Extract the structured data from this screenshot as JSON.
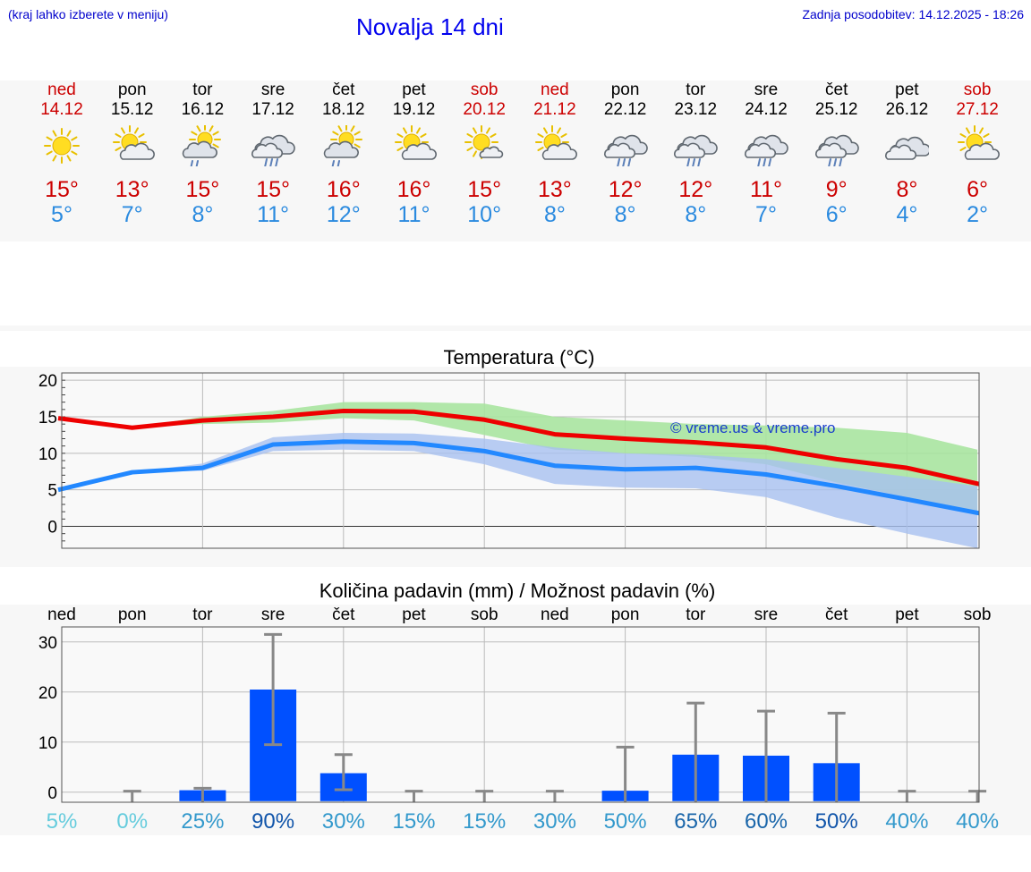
{
  "header": {
    "note": "(kraj lahko izberete v meniju)",
    "title": "Novalja 14 dni",
    "updated": "Zadnja posodobitev: 14.12.2025 - 18:26"
  },
  "colors": {
    "weekend": "#cc0000",
    "tmax": "#cc0000",
    "tmin": "#2a8adf",
    "max_line": "#ee0000",
    "min_line": "#2288ff",
    "max_band": "#a8e4a0",
    "min_band": "#a8c0f0",
    "bar": "#0050ff",
    "error_bar": "#888888"
  },
  "days": [
    {
      "name": "ned",
      "date": "14.12",
      "weekend": true,
      "icon": "sun-icon",
      "tmax": "15°",
      "tmin": "5°"
    },
    {
      "name": "pon",
      "date": "15.12",
      "weekend": false,
      "icon": "sun-cloud-icon",
      "tmax": "13°",
      "tmin": "7°"
    },
    {
      "name": "tor",
      "date": "16.12",
      "weekend": false,
      "icon": "sun-cloud-rain-icon",
      "tmax": "15°",
      "tmin": "8°"
    },
    {
      "name": "sre",
      "date": "17.12",
      "weekend": false,
      "icon": "cloud-rain-icon",
      "tmax": "15°",
      "tmin": "11°"
    },
    {
      "name": "čet",
      "date": "18.12",
      "weekend": false,
      "icon": "sun-cloud-rain-icon",
      "tmax": "16°",
      "tmin": "12°"
    },
    {
      "name": "pet",
      "date": "19.12",
      "weekend": false,
      "icon": "sun-cloud-icon",
      "tmax": "16°",
      "tmin": "11°"
    },
    {
      "name": "sob",
      "date": "20.12",
      "weekend": true,
      "icon": "sun-small-cloud-icon",
      "tmax": "15°",
      "tmin": "10°"
    },
    {
      "name": "ned",
      "date": "21.12",
      "weekend": true,
      "icon": "sun-cloud-icon",
      "tmax": "13°",
      "tmin": "8°"
    },
    {
      "name": "pon",
      "date": "22.12",
      "weekend": false,
      "icon": "cloud-rain-icon",
      "tmax": "12°",
      "tmin": "8°"
    },
    {
      "name": "tor",
      "date": "23.12",
      "weekend": false,
      "icon": "cloud-rain-icon",
      "tmax": "12°",
      "tmin": "8°"
    },
    {
      "name": "sre",
      "date": "24.12",
      "weekend": false,
      "icon": "cloud-rain-icon",
      "tmax": "11°",
      "tmin": "7°"
    },
    {
      "name": "čet",
      "date": "25.12",
      "weekend": false,
      "icon": "cloud-rain-icon",
      "tmax": "9°",
      "tmin": "6°"
    },
    {
      "name": "pet",
      "date": "26.12",
      "weekend": false,
      "icon": "cloud-icon",
      "tmax": "8°",
      "tmin": "4°"
    },
    {
      "name": "sob",
      "date": "27.12",
      "weekend": true,
      "icon": "sun-cloud-icon",
      "tmax": "6°",
      "tmin": "2°"
    }
  ],
  "chart_data": [
    {
      "type": "line",
      "title": "Temperatura (°C)",
      "watermark": "© vreme.us & vreme.pro",
      "x": [
        0,
        1,
        2,
        3,
        4,
        5,
        6,
        7,
        8,
        9,
        10,
        11,
        12,
        13
      ],
      "ylim": [
        -3,
        21
      ],
      "yticks": [
        0,
        5,
        10,
        15,
        20
      ],
      "grid": true,
      "series": [
        {
          "name": "max",
          "values": [
            14.8,
            13.5,
            14.5,
            15.0,
            15.8,
            15.7,
            14.6,
            12.6,
            12.0,
            11.5,
            10.8,
            9.2,
            8.0,
            5.8
          ]
        },
        {
          "name": "min",
          "values": [
            5.0,
            7.4,
            8.0,
            11.2,
            11.6,
            11.4,
            10.3,
            8.3,
            7.8,
            8.0,
            7.1,
            5.5,
            3.7,
            1.8
          ]
        }
      ],
      "bands": [
        {
          "name": "max-range",
          "low": [
            14.8,
            13.5,
            14.0,
            14.2,
            14.8,
            14.5,
            12.5,
            10.5,
            10.0,
            9.5,
            8.5,
            6.0,
            4.0,
            1.5
          ],
          "high": [
            14.8,
            13.5,
            15.0,
            15.8,
            17.0,
            17.0,
            16.8,
            15.0,
            14.5,
            14.0,
            13.8,
            13.5,
            12.8,
            10.5
          ]
        },
        {
          "name": "min-range",
          "low": [
            5.0,
            7.4,
            7.6,
            10.3,
            10.5,
            10.3,
            8.5,
            5.8,
            5.3,
            5.2,
            4.0,
            1.2,
            -1.0,
            -3.0
          ],
          "high": [
            5.0,
            7.4,
            8.6,
            12.2,
            12.8,
            12.7,
            12.0,
            10.8,
            10.0,
            9.8,
            9.2,
            8.0,
            6.8,
            5.5
          ]
        }
      ]
    },
    {
      "type": "bar",
      "title": "Količina padavin (mm) / Možnost padavin (%)",
      "categories": [
        "ned",
        "pon",
        "tor",
        "sre",
        "čet",
        "pet",
        "sob",
        "ned",
        "pon",
        "tor",
        "sre",
        "čet",
        "pet",
        "sob"
      ],
      "values": [
        0,
        0,
        0.4,
        20.5,
        3.8,
        0,
        0,
        0,
        0.3,
        7.5,
        7.3,
        5.8,
        0,
        0
      ],
      "err_low": [
        0,
        0,
        0,
        9.5,
        0.5,
        0,
        0,
        0,
        0,
        0,
        0,
        0,
        0,
        0
      ],
      "err_high": [
        0,
        0.2,
        0.8,
        31.5,
        7.5,
        0.2,
        0.2,
        0.2,
        9.0,
        17.8,
        16.2,
        15.8,
        0.2,
        0.2
      ],
      "probability": [
        "5%",
        "0%",
        "25%",
        "90%",
        "30%",
        "15%",
        "15%",
        "30%",
        "50%",
        "65%",
        "60%",
        "50%",
        "40%",
        "40%"
      ],
      "probability_colors": [
        "#66ccdd",
        "#66ccdd",
        "#3399cc",
        "#1155aa",
        "#3399cc",
        "#3399cc",
        "#3399cc",
        "#3399cc",
        "#3399cc",
        "#1a66aa",
        "#1a66aa",
        "#1155aa",
        "#3399cc",
        "#3399cc"
      ],
      "ylim": [
        -2,
        33
      ],
      "yticks": [
        0,
        10,
        20,
        30
      ],
      "grid": true
    }
  ]
}
